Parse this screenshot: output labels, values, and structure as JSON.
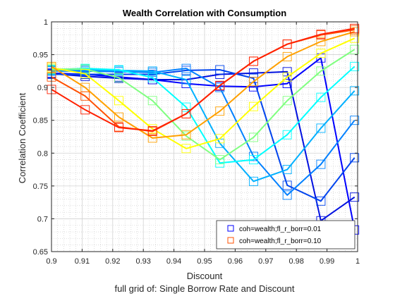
{
  "chart_data": {
    "type": "line",
    "title": "Wealth Correlation with Consumption",
    "xlabel": "Discount",
    "ylabel": "Correlation Coefficient",
    "footer": "full grid of: Single Borrow Rate and Discount",
    "xlim": [
      0.9,
      1.0
    ],
    "ylim": [
      0.65,
      1.0
    ],
    "xticks": [
      "0.9",
      "0.91",
      "0.92",
      "0.93",
      "0.94",
      "0.95",
      "0.96",
      "0.97",
      "0.98",
      "0.99",
      "1"
    ],
    "yticks": [
      "0.65",
      "0.7",
      "0.75",
      "0.8",
      "0.85",
      "0.9",
      "0.95",
      "1"
    ],
    "grid": true,
    "minor_grid": true,
    "legend_position": "bottom-right",
    "marker": "square",
    "x": [
      0.9,
      0.911,
      0.922,
      0.933,
      0.944,
      0.955,
      0.966,
      0.977,
      0.988,
      0.999
    ],
    "series": [
      {
        "name": "coh=wealth;fl_r_borr=0.01",
        "color": "#0000ff",
        "values": [
          0.922,
          0.92,
          0.916,
          0.912,
          0.906,
          0.902,
          0.901,
          0.906,
          0.945,
          0.683
        ]
      },
      {
        "name": "",
        "color": "#0010e0",
        "values": [
          0.921,
          0.917,
          0.914,
          0.912,
          0.912,
          0.92,
          0.922,
          0.924,
          0.697,
          0.733
        ]
      },
      {
        "name": "",
        "color": "#0044ee",
        "values": [
          0.92,
          0.92,
          0.92,
          0.92,
          0.926,
          0.927,
          0.914,
          0.751,
          0.727,
          0.793
        ]
      },
      {
        "name": "",
        "color": "#0080ff",
        "values": [
          0.925,
          0.925,
          0.924,
          0.923,
          0.929,
          0.9,
          0.795,
          0.736,
          0.783,
          0.85
        ]
      },
      {
        "name": "",
        "color": "#00b0ff",
        "values": [
          0.926,
          0.927,
          0.926,
          0.925,
          0.912,
          0.815,
          0.757,
          0.775,
          0.838,
          0.895
        ]
      },
      {
        "name": "",
        "color": "#00ffff",
        "values": [
          0.927,
          0.929,
          0.927,
          0.915,
          0.87,
          0.785,
          0.79,
          0.828,
          0.885,
          0.932
        ]
      },
      {
        "name": "",
        "color": "#80ff80",
        "values": [
          0.928,
          0.928,
          0.915,
          0.88,
          0.826,
          0.79,
          0.824,
          0.88,
          0.925,
          0.958
        ]
      },
      {
        "name": "",
        "color": "#ffff00",
        "values": [
          0.93,
          0.921,
          0.88,
          0.837,
          0.807,
          0.822,
          0.871,
          0.916,
          0.952,
          0.975
        ]
      },
      {
        "name": "",
        "color": "#ffa000",
        "values": [
          0.932,
          0.9,
          0.855,
          0.823,
          0.828,
          0.864,
          0.909,
          0.947,
          0.97,
          0.985
        ]
      },
      {
        "name": "coh=wealth;fl_r_borr=0.10",
        "color": "#ff5000",
        "values": [
          0.916,
          0.887,
          0.84,
          0.833,
          0.86,
          0.903,
          0.94,
          0.966,
          0.98,
          0.988
        ]
      },
      {
        "name": "",
        "color": "#ff2000",
        "values": [
          0.897,
          0.866,
          0.839,
          0.834,
          0.86,
          0.903,
          0.94,
          0.966,
          0.981,
          0.99
        ]
      }
    ]
  }
}
